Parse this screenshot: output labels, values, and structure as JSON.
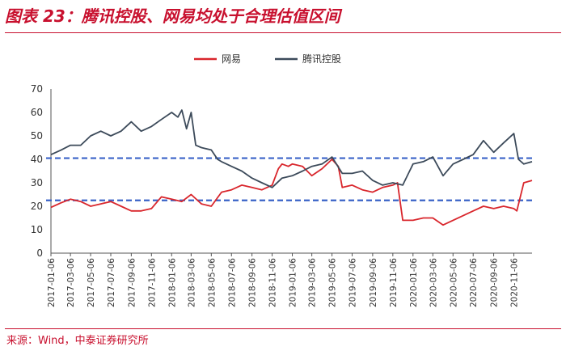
{
  "figure_title": "图表 23：腾讯控股、网易均处于合理估值区间",
  "source_note": "来源：Wind，中泰证券研究所",
  "colors": {
    "accent": "#c8102e",
    "netease": "#d9262c",
    "tencent": "#3c4a5a",
    "reference_line": "#3a63c8"
  },
  "chart_data": {
    "type": "line",
    "ylim": [
      0,
      70
    ],
    "yticks": [
      "0",
      "10",
      "20",
      "30",
      "40",
      "50",
      "60",
      "70"
    ],
    "xticks": [
      "2017-01-06",
      "2017-03-06",
      "2017-05-06",
      "2017-07-06",
      "2017-09-06",
      "2017-11-06",
      "2018-01-06",
      "2018-03-06",
      "2018-05-06",
      "2018-07-06",
      "2018-09-06",
      "2018-11-06",
      "2019-01-06",
      "2019-03-06",
      "2019-05-06",
      "2019-07-06",
      "2019-09-06",
      "2019-11-06",
      "2020-01-06",
      "2020-03-06",
      "2020-05-06",
      "2020-07-06",
      "2020-09-06",
      "2020-11-06"
    ],
    "legend_position": "top",
    "grid": false,
    "reference_lines": [
      40.5,
      22.5
    ],
    "series": [
      {
        "name": "网易",
        "color": "#d9262c",
        "x": [
          "2017-01-06",
          "2017-02-06",
          "2017-03-06",
          "2017-04-06",
          "2017-05-06",
          "2017-06-06",
          "2017-07-06",
          "2017-08-06",
          "2017-09-06",
          "2017-10-06",
          "2017-11-06",
          "2017-12-06",
          "2018-01-06",
          "2018-02-06",
          "2018-03-06",
          "2018-04-06",
          "2018-05-06",
          "2018-06-06",
          "2018-07-06",
          "2018-08-06",
          "2018-09-06",
          "2018-10-06",
          "2018-11-06",
          "2018-11-25",
          "2018-12-06",
          "2018-12-25",
          "2019-01-06",
          "2019-02-06",
          "2019-03-06",
          "2019-04-06",
          "2019-05-06",
          "2019-05-25",
          "2019-06-06",
          "2019-07-06",
          "2019-08-06",
          "2019-09-06",
          "2019-10-06",
          "2019-11-06",
          "2019-11-20",
          "2019-12-06",
          "2020-01-06",
          "2020-02-06",
          "2020-03-06",
          "2020-04-06",
          "2020-05-06",
          "2020-06-06",
          "2020-07-06",
          "2020-08-06",
          "2020-09-06",
          "2020-10-06",
          "2020-11-06",
          "2020-11-15",
          "2020-12-06",
          "2020-12-31"
        ],
        "y": [
          19.5,
          21.5,
          23,
          22,
          20,
          21,
          22,
          20,
          18,
          18,
          19,
          24,
          23,
          22,
          25,
          21,
          20,
          26,
          27,
          29,
          28,
          27,
          29,
          36,
          38,
          37,
          38,
          37,
          33,
          36,
          40,
          37,
          28,
          29,
          27,
          26,
          28,
          29,
          30,
          14,
          14,
          15,
          15,
          12,
          14,
          16,
          18,
          20,
          19,
          20,
          19,
          18,
          30,
          31
        ]
      },
      {
        "name": "腾讯控股",
        "color": "#3c4a5a",
        "x": [
          "2017-01-06",
          "2017-02-06",
          "2017-03-06",
          "2017-04-06",
          "2017-05-06",
          "2017-06-06",
          "2017-07-06",
          "2017-08-06",
          "2017-09-06",
          "2017-10-06",
          "2017-11-06",
          "2017-12-06",
          "2018-01-06",
          "2018-01-25",
          "2018-02-06",
          "2018-02-20",
          "2018-03-06",
          "2018-03-20",
          "2018-04-06",
          "2018-05-06",
          "2018-05-25",
          "2018-06-06",
          "2018-07-06",
          "2018-08-06",
          "2018-09-06",
          "2018-10-06",
          "2018-11-06",
          "2018-12-06",
          "2019-01-06",
          "2019-02-06",
          "2019-03-06",
          "2019-04-06",
          "2019-05-06",
          "2019-06-06",
          "2019-07-06",
          "2019-08-06",
          "2019-09-06",
          "2019-10-06",
          "2019-11-06",
          "2019-12-06",
          "2020-01-06",
          "2020-02-06",
          "2020-03-06",
          "2020-04-06",
          "2020-05-06",
          "2020-06-06",
          "2020-07-06",
          "2020-08-06",
          "2020-09-06",
          "2020-10-06",
          "2020-11-06",
          "2020-11-20",
          "2020-12-06",
          "2020-12-31"
        ],
        "y": [
          42,
          44,
          46,
          46,
          50,
          52,
          50,
          52,
          56,
          52,
          54,
          57,
          60,
          58,
          61,
          53,
          60,
          46,
          45,
          44,
          40,
          39,
          37,
          35,
          32,
          30,
          28,
          32,
          33,
          35,
          37,
          38,
          41,
          34,
          34,
          35,
          31,
          29,
          30,
          29,
          38,
          39,
          41,
          33,
          38,
          40,
          42,
          48,
          43,
          47,
          51,
          40,
          38,
          39
        ]
      }
    ]
  }
}
